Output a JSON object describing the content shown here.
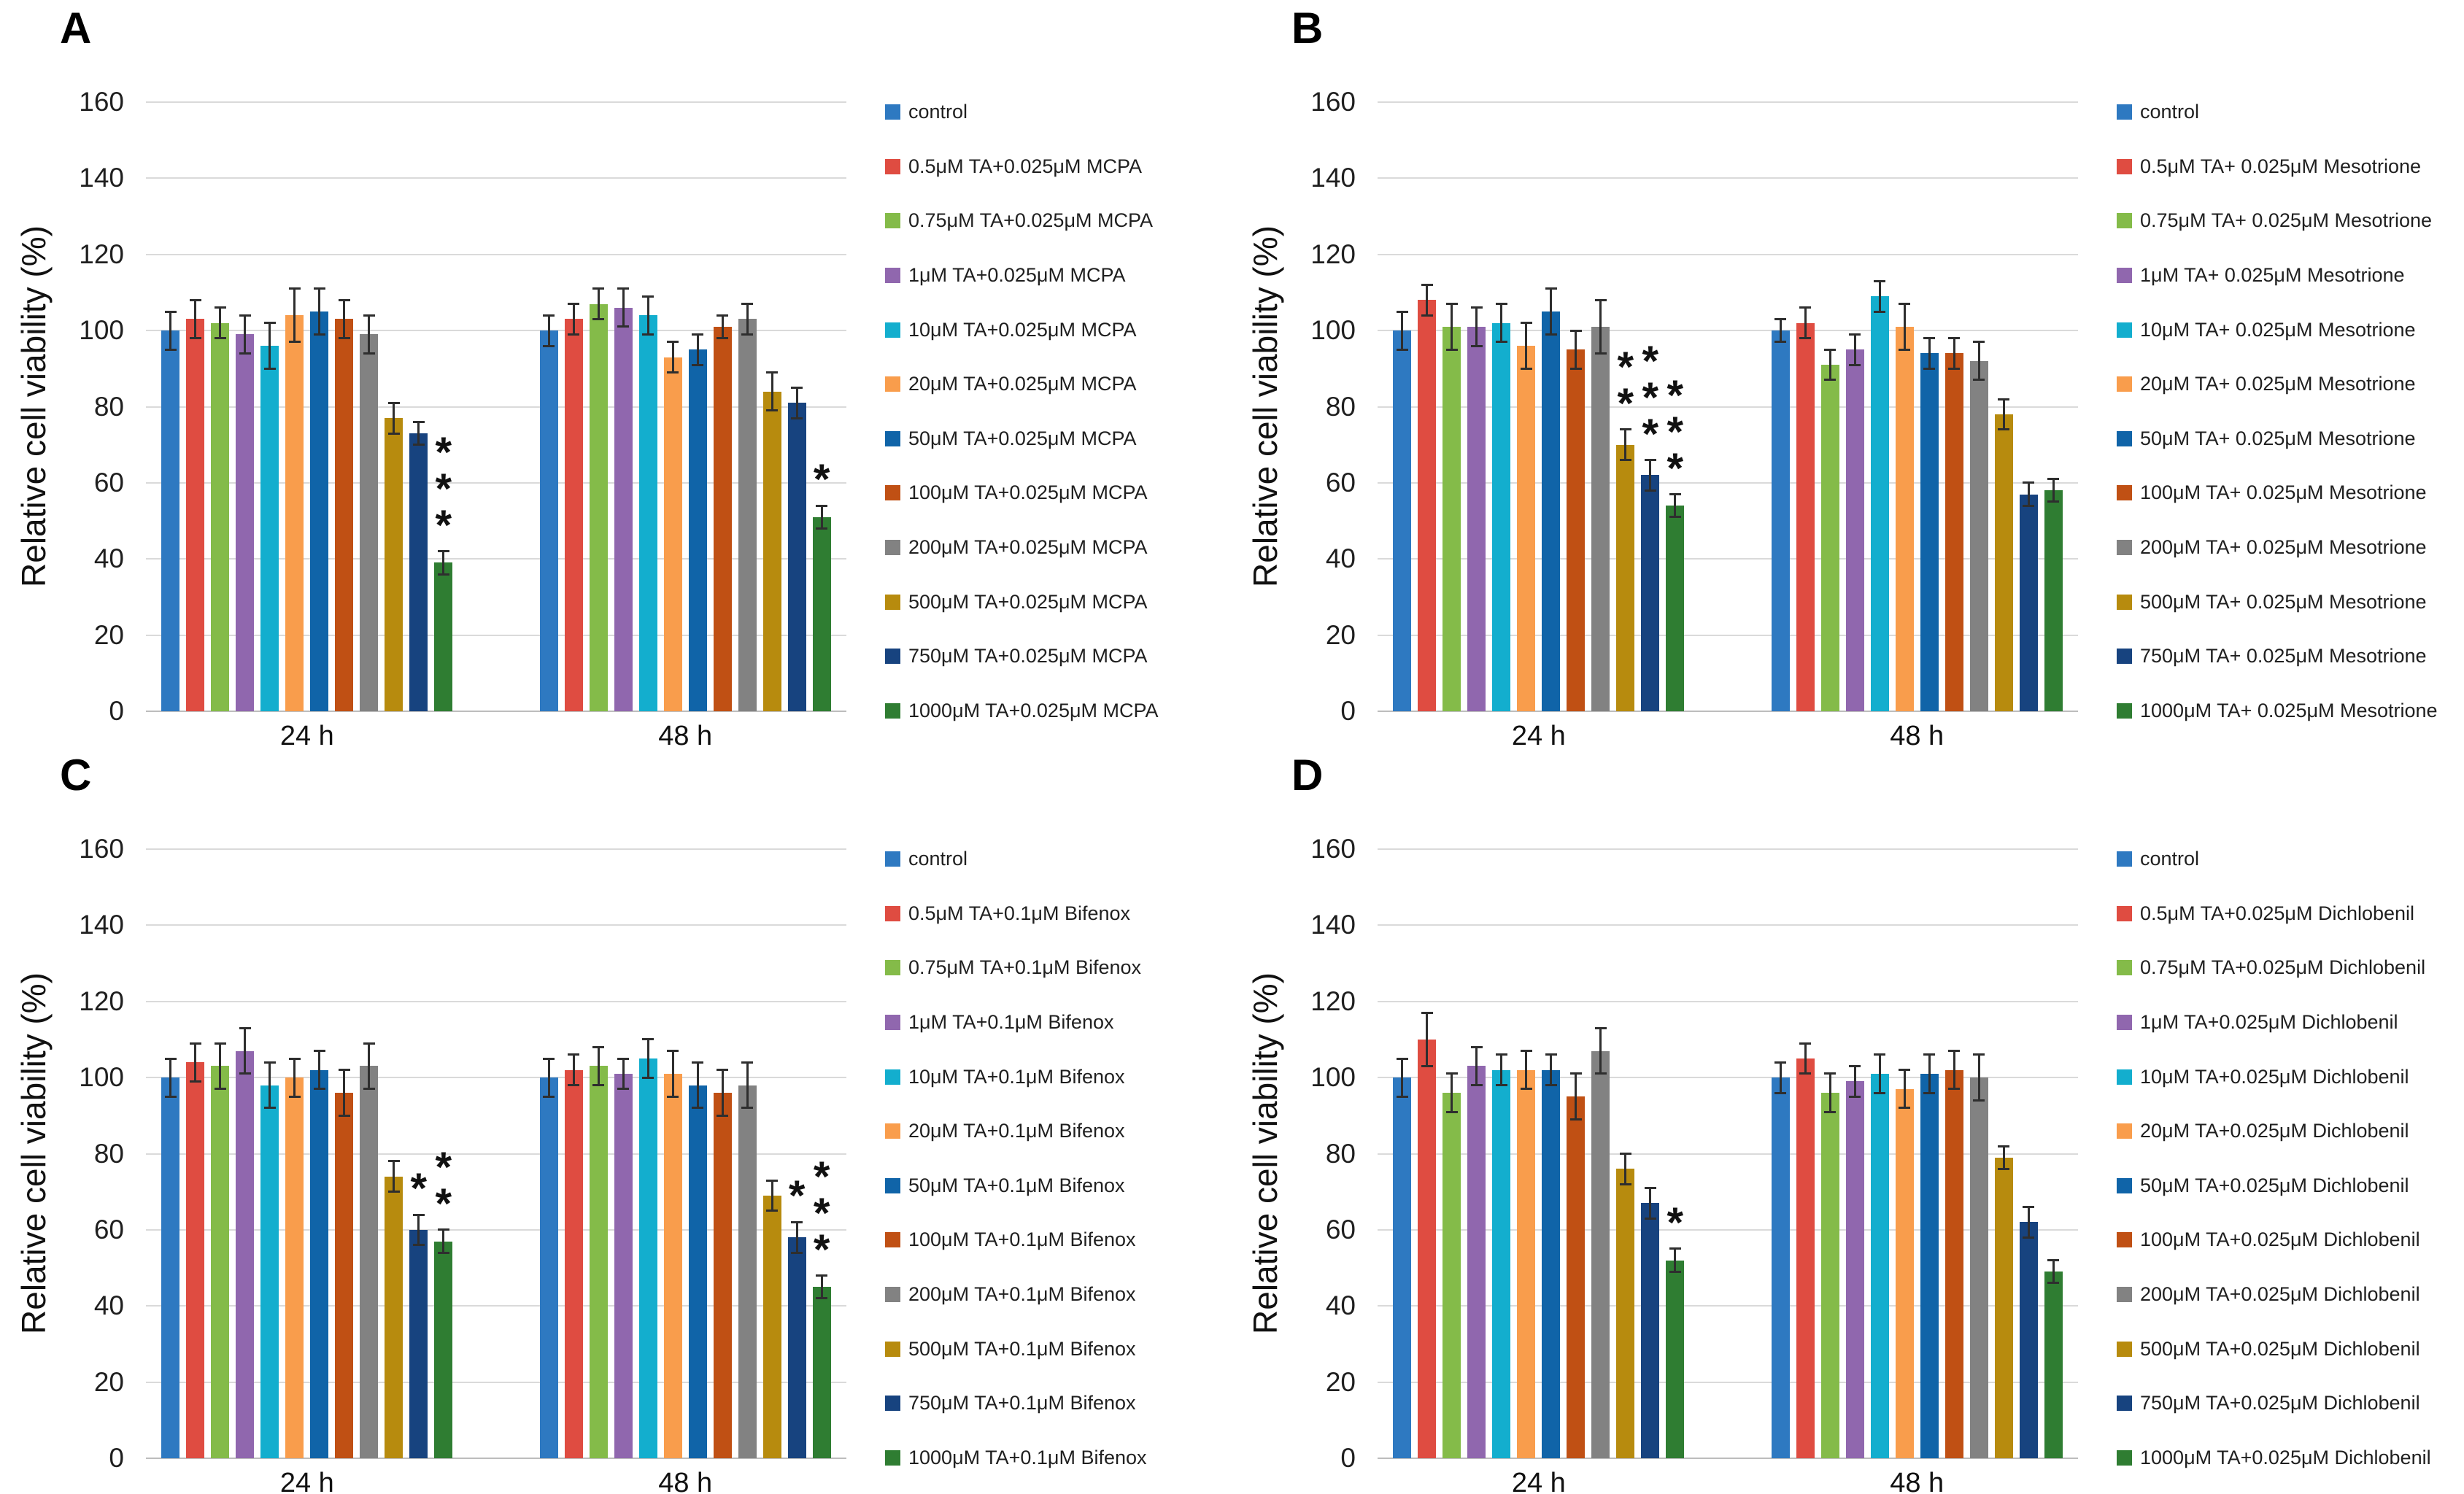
{
  "figure": {
    "ylabel": "Relative cell viability (%)",
    "groups": [
      "24 h",
      "48 h"
    ],
    "yticks": [
      0,
      20,
      40,
      60,
      80,
      100,
      120,
      140,
      160
    ],
    "ymax": 160,
    "gridline_color": "#DADADA",
    "error_bar_color": "#2e2e2e"
  },
  "palette": [
    "#2E79C1",
    "#DF4C41",
    "#84BB49",
    "#9067AE",
    "#13AECE",
    "#F99D4C",
    "#1064A8",
    "#C05014",
    "#828282",
    "#B78B0E",
    "#17437F",
    "#2F7D32"
  ],
  "chart_data": [
    {
      "panel": "A",
      "type": "bar",
      "ylabel": "Relative cell viability (%)",
      "ylim": [
        0,
        160
      ],
      "grid": true,
      "legend_position": "right",
      "categories": [
        "24 h",
        "48 h"
      ],
      "series": [
        {
          "name": "control",
          "color": "#2E79C1",
          "values": [
            100,
            100
          ],
          "errors": [
            5,
            4
          ],
          "sig": [
            "",
            ""
          ]
        },
        {
          "name": "0.5μM TA+0.025μM MCPA",
          "color": "#DF4C41",
          "values": [
            103,
            103
          ],
          "errors": [
            5,
            4
          ],
          "sig": [
            "",
            ""
          ]
        },
        {
          "name": "0.75μM TA+0.025μM MCPA",
          "color": "#84BB49",
          "values": [
            102,
            107
          ],
          "errors": [
            4,
            4
          ],
          "sig": [
            "",
            ""
          ]
        },
        {
          "name": "1μM TA+0.025μM MCPA",
          "color": "#9067AE",
          "values": [
            99,
            106
          ],
          "errors": [
            5,
            5
          ],
          "sig": [
            "",
            ""
          ]
        },
        {
          "name": "10μM TA+0.025μM MCPA",
          "color": "#13AECE",
          "values": [
            96,
            104
          ],
          "errors": [
            6,
            5
          ],
          "sig": [
            "",
            ""
          ]
        },
        {
          "name": "20μM TA+0.025μM MCPA",
          "color": "#F99D4C",
          "values": [
            104,
            93
          ],
          "errors": [
            7,
            4
          ],
          "sig": [
            "",
            ""
          ]
        },
        {
          "name": "50μM TA+0.025μM MCPA",
          "color": "#1064A8",
          "values": [
            105,
            95
          ],
          "errors": [
            6,
            4
          ],
          "sig": [
            "",
            ""
          ]
        },
        {
          "name": "100μM TA+0.025μM MCPA",
          "color": "#C05014",
          "values": [
            103,
            101
          ],
          "errors": [
            5,
            3
          ],
          "sig": [
            "",
            ""
          ]
        },
        {
          "name": "200μM TA+0.025μM MCPA",
          "color": "#828282",
          "values": [
            99,
            103
          ],
          "errors": [
            5,
            4
          ],
          "sig": [
            "",
            ""
          ]
        },
        {
          "name": "500μM TA+0.025μM MCPA",
          "color": "#B78B0E",
          "values": [
            77,
            84
          ],
          "errors": [
            4,
            5
          ],
          "sig": [
            "",
            ""
          ]
        },
        {
          "name": "750μM TA+0.025μM MCPA",
          "color": "#17437F",
          "values": [
            73,
            81
          ],
          "errors": [
            3,
            4
          ],
          "sig": [
            "",
            ""
          ]
        },
        {
          "name": "1000μM TA+0.025μM MCPA",
          "color": "#2F7D32",
          "values": [
            39,
            51
          ],
          "errors": [
            3,
            3
          ],
          "sig": [
            "***",
            "*"
          ]
        }
      ]
    },
    {
      "panel": "B",
      "type": "bar",
      "ylabel": "Relative cell viability (%)",
      "ylim": [
        0,
        160
      ],
      "grid": true,
      "legend_position": "right",
      "categories": [
        "24 h",
        "48 h"
      ],
      "series": [
        {
          "name": "control",
          "color": "#2E79C1",
          "values": [
            100,
            100
          ],
          "errors": [
            5,
            3
          ],
          "sig": [
            "",
            ""
          ]
        },
        {
          "name": "0.5μM TA+ 0.025μM Mesotrione",
          "color": "#DF4C41",
          "values": [
            108,
            102
          ],
          "errors": [
            4,
            4
          ],
          "sig": [
            "",
            ""
          ]
        },
        {
          "name": "0.75μM TA+ 0.025μM Mesotrione",
          "color": "#84BB49",
          "values": [
            101,
            91
          ],
          "errors": [
            6,
            4
          ],
          "sig": [
            "",
            ""
          ]
        },
        {
          "name": "1μM TA+ 0.025μM Mesotrione",
          "color": "#9067AE",
          "values": [
            101,
            95
          ],
          "errors": [
            5,
            4
          ],
          "sig": [
            "",
            ""
          ]
        },
        {
          "name": "10μM TA+ 0.025μM Mesotrione",
          "color": "#13AECE",
          "values": [
            102,
            109
          ],
          "errors": [
            5,
            4
          ],
          "sig": [
            "",
            ""
          ]
        },
        {
          "name": "20μM TA+ 0.025μM Mesotrione",
          "color": "#F99D4C",
          "values": [
            96,
            101
          ],
          "errors": [
            6,
            6
          ],
          "sig": [
            "",
            ""
          ]
        },
        {
          "name": "50μM TA+ 0.025μM Mesotrione",
          "color": "#1064A8",
          "values": [
            105,
            94
          ],
          "errors": [
            6,
            4
          ],
          "sig": [
            "",
            ""
          ]
        },
        {
          "name": "100μM TA+ 0.025μM Mesotrione",
          "color": "#C05014",
          "values": [
            95,
            94
          ],
          "errors": [
            5,
            4
          ],
          "sig": [
            "",
            ""
          ]
        },
        {
          "name": "200μM TA+ 0.025μM Mesotrione",
          "color": "#828282",
          "values": [
            101,
            92
          ],
          "errors": [
            7,
            5
          ],
          "sig": [
            "",
            ""
          ]
        },
        {
          "name": "500μM TA+ 0.025μM Mesotrione",
          "color": "#B78B0E",
          "values": [
            70,
            78
          ],
          "errors": [
            4,
            4
          ],
          "sig": [
            "**",
            ""
          ]
        },
        {
          "name": "750μM TA+ 0.025μM Mesotrione",
          "color": "#17437F",
          "values": [
            62,
            57
          ],
          "errors": [
            4,
            3
          ],
          "sig": [
            "***",
            ""
          ]
        },
        {
          "name": "1000μM TA+ 0.025μM Mesotrione",
          "color": "#2F7D32",
          "values": [
            54,
            58
          ],
          "errors": [
            3,
            3
          ],
          "sig": [
            "***",
            ""
          ]
        }
      ]
    },
    {
      "panel": "C",
      "type": "bar",
      "ylabel": "Relative cell viability (%)",
      "ylim": [
        0,
        160
      ],
      "grid": true,
      "legend_position": "right",
      "categories": [
        "24 h",
        "48 h"
      ],
      "series": [
        {
          "name": "control",
          "color": "#2E79C1",
          "values": [
            100,
            100
          ],
          "errors": [
            5,
            5
          ],
          "sig": [
            "",
            ""
          ]
        },
        {
          "name": "0.5μM TA+0.1μM Bifenox",
          "color": "#DF4C41",
          "values": [
            104,
            102
          ],
          "errors": [
            5,
            4
          ],
          "sig": [
            "",
            ""
          ]
        },
        {
          "name": "0.75μM TA+0.1μM Bifenox",
          "color": "#84BB49",
          "values": [
            103,
            103
          ],
          "errors": [
            6,
            5
          ],
          "sig": [
            "",
            ""
          ]
        },
        {
          "name": "1μM TA+0.1μM Bifenox",
          "color": "#9067AE",
          "values": [
            107,
            101
          ],
          "errors": [
            6,
            4
          ],
          "sig": [
            "",
            ""
          ]
        },
        {
          "name": "10μM TA+0.1μM Bifenox",
          "color": "#13AECE",
          "values": [
            98,
            105
          ],
          "errors": [
            6,
            5
          ],
          "sig": [
            "",
            ""
          ]
        },
        {
          "name": "20μM TA+0.1μM Bifenox",
          "color": "#F99D4C",
          "values": [
            100,
            101
          ],
          "errors": [
            5,
            6
          ],
          "sig": [
            "",
            ""
          ]
        },
        {
          "name": "50μM TA+0.1μM Bifenox",
          "color": "#1064A8",
          "values": [
            102,
            98
          ],
          "errors": [
            5,
            6
          ],
          "sig": [
            "",
            ""
          ]
        },
        {
          "name": "100μM TA+0.1μM Bifenox",
          "color": "#C05014",
          "values": [
            96,
            96
          ],
          "errors": [
            6,
            6
          ],
          "sig": [
            "",
            ""
          ]
        },
        {
          "name": "200μM TA+0.1μM Bifenox",
          "color": "#828282",
          "values": [
            103,
            98
          ],
          "errors": [
            6,
            6
          ],
          "sig": [
            "",
            ""
          ]
        },
        {
          "name": "500μM TA+0.1μM Bifenox",
          "color": "#B78B0E",
          "values": [
            74,
            69
          ],
          "errors": [
            4,
            4
          ],
          "sig": [
            "",
            ""
          ]
        },
        {
          "name": "750μM TA+0.1μM Bifenox",
          "color": "#17437F",
          "values": [
            60,
            58
          ],
          "errors": [
            4,
            4
          ],
          "sig": [
            "*",
            "*"
          ]
        },
        {
          "name": "1000μM TA+0.1μM Bifenox",
          "color": "#2F7D32",
          "values": [
            57,
            45
          ],
          "errors": [
            3,
            3
          ],
          "sig": [
            "**",
            "***"
          ]
        }
      ]
    },
    {
      "panel": "D",
      "type": "bar",
      "ylabel": "Relative cell viability (%)",
      "ylim": [
        0,
        160
      ],
      "grid": true,
      "legend_position": "right",
      "categories": [
        "24 h",
        "48 h"
      ],
      "series": [
        {
          "name": "control",
          "color": "#2E79C1",
          "values": [
            100,
            100
          ],
          "errors": [
            5,
            4
          ],
          "sig": [
            "",
            ""
          ]
        },
        {
          "name": "0.5μM TA+0.025μM Dichlobenil",
          "color": "#DF4C41",
          "values": [
            110,
            105
          ],
          "errors": [
            7,
            4
          ],
          "sig": [
            "",
            ""
          ]
        },
        {
          "name": "0.75μM TA+0.025μM Dichlobenil",
          "color": "#84BB49",
          "values": [
            96,
            96
          ],
          "errors": [
            5,
            5
          ],
          "sig": [
            "",
            ""
          ]
        },
        {
          "name": "1μM TA+0.025μM Dichlobenil",
          "color": "#9067AE",
          "values": [
            103,
            99
          ],
          "errors": [
            5,
            4
          ],
          "sig": [
            "",
            ""
          ]
        },
        {
          "name": "10μM TA+0.025μM Dichlobenil",
          "color": "#13AECE",
          "values": [
            102,
            101
          ],
          "errors": [
            4,
            5
          ],
          "sig": [
            "",
            ""
          ]
        },
        {
          "name": "20μM TA+0.025μM Dichlobenil",
          "color": "#F99D4C",
          "values": [
            102,
            97
          ],
          "errors": [
            5,
            5
          ],
          "sig": [
            "",
            ""
          ]
        },
        {
          "name": "50μM TA+0.025μM Dichlobenil",
          "color": "#1064A8",
          "values": [
            102,
            101
          ],
          "errors": [
            4,
            5
          ],
          "sig": [
            "",
            ""
          ]
        },
        {
          "name": "100μM TA+0.025μM Dichlobenil",
          "color": "#C05014",
          "values": [
            95,
            102
          ],
          "errors": [
            6,
            5
          ],
          "sig": [
            "",
            ""
          ]
        },
        {
          "name": "200μM TA+0.025μM Dichlobenil",
          "color": "#828282",
          "values": [
            107,
            100
          ],
          "errors": [
            6,
            6
          ],
          "sig": [
            "",
            ""
          ]
        },
        {
          "name": "500μM TA+0.025μM Dichlobenil",
          "color": "#B78B0E",
          "values": [
            76,
            79
          ],
          "errors": [
            4,
            3
          ],
          "sig": [
            "",
            ""
          ]
        },
        {
          "name": "750μM TA+0.025μM Dichlobenil",
          "color": "#17437F",
          "values": [
            67,
            62
          ],
          "errors": [
            4,
            4
          ],
          "sig": [
            "",
            ""
          ]
        },
        {
          "name": "1000μM TA+0.025μM Dichlobenil",
          "color": "#2F7D32",
          "values": [
            52,
            49
          ],
          "errors": [
            3,
            3
          ],
          "sig": [
            "*",
            ""
          ]
        }
      ]
    }
  ]
}
